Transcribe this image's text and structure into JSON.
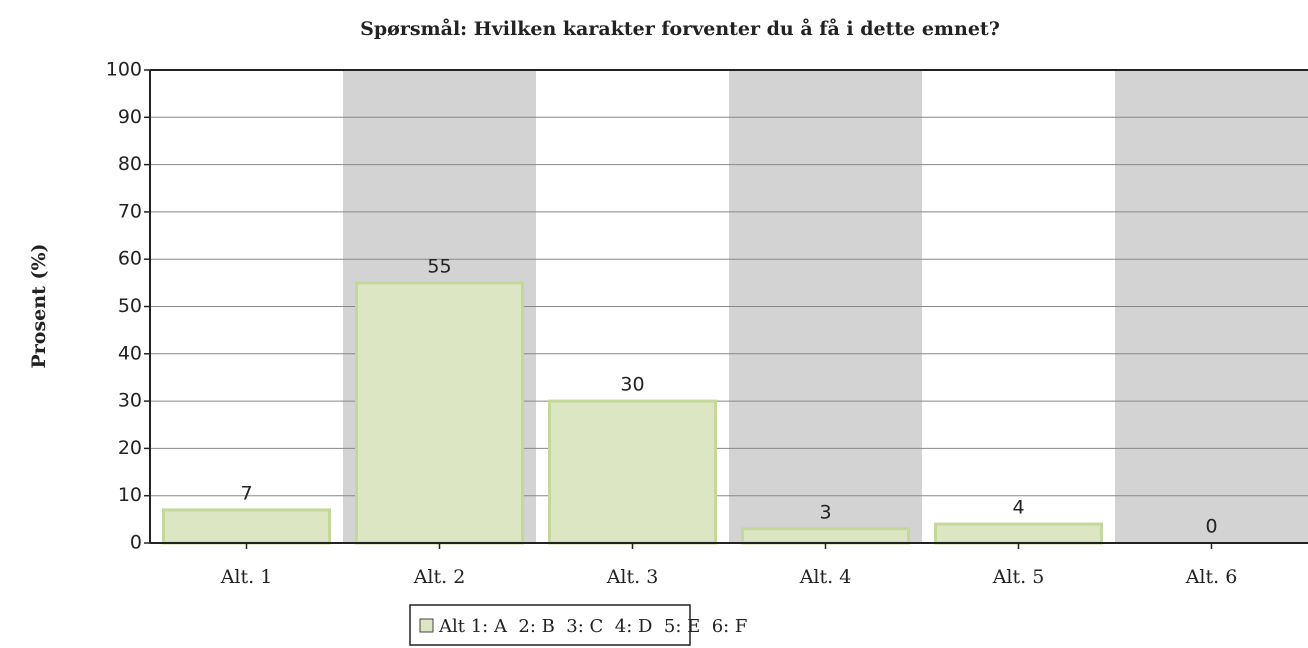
{
  "chart_data": {
    "type": "bar",
    "title": "Spørsmål: Hvilken karakter forventer du å få i dette emnet?",
    "y_label": "Prosent (%)",
    "categories": [
      "Alt. 1",
      "Alt. 2",
      "Alt. 3",
      "Alt. 4",
      "Alt. 5",
      "Alt. 6"
    ],
    "series": [
      {
        "name": "Alt 1: A  2: B  3: C  4: D  5: E  6: F",
        "color": "#dce6c2",
        "values": [
          7,
          55,
          30,
          3,
          4,
          0
        ]
      }
    ],
    "ylim": [
      0,
      100
    ],
    "yticks": [
      0,
      10,
      20,
      30,
      40,
      50,
      60,
      70,
      80,
      90,
      100
    ],
    "grid": true,
    "band_color": "#d3d3d3",
    "legend": "bottom"
  }
}
